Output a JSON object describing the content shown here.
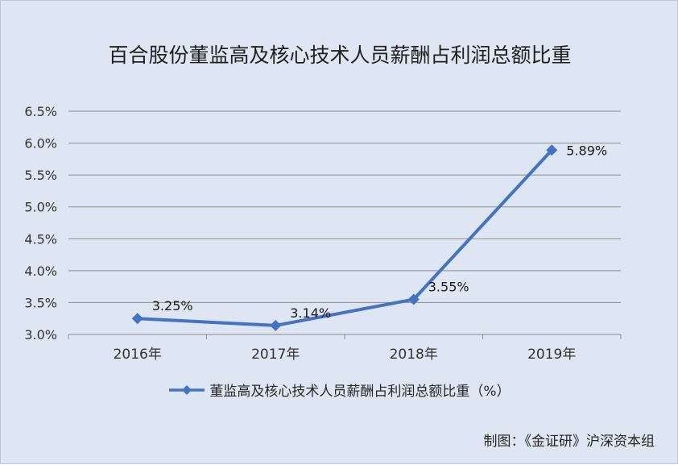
{
  "chart_data": {
    "type": "line",
    "title": "百合股份董监高及核心技术人员薪酬占利润总额比重",
    "categories": [
      "2016年",
      "2017年",
      "2018年",
      "2019年"
    ],
    "series": [
      {
        "name": "董监高及核心技术人员薪酬占利润总额比重（%）",
        "values": [
          3.25,
          3.14,
          3.55,
          5.89
        ],
        "labels": [
          "3.25%",
          "3.14%",
          "3.55%",
          "5.89%"
        ],
        "color": "#4472c4",
        "marker": "diamond"
      }
    ],
    "yticks": [
      "3.0%",
      "3.5%",
      "4.0%",
      "4.5%",
      "5.0%",
      "5.5%",
      "6.0%",
      "6.5%"
    ],
    "ylim": [
      3.0,
      6.5
    ],
    "grid": true,
    "legend_position": "bottom",
    "xlabel": "",
    "ylabel": ""
  },
  "source_note": "制图：《金证研》沪深资本组",
  "colors": {
    "background": "#dde6f2",
    "gridline": "#8c8c8c",
    "series": "#4472c4"
  }
}
